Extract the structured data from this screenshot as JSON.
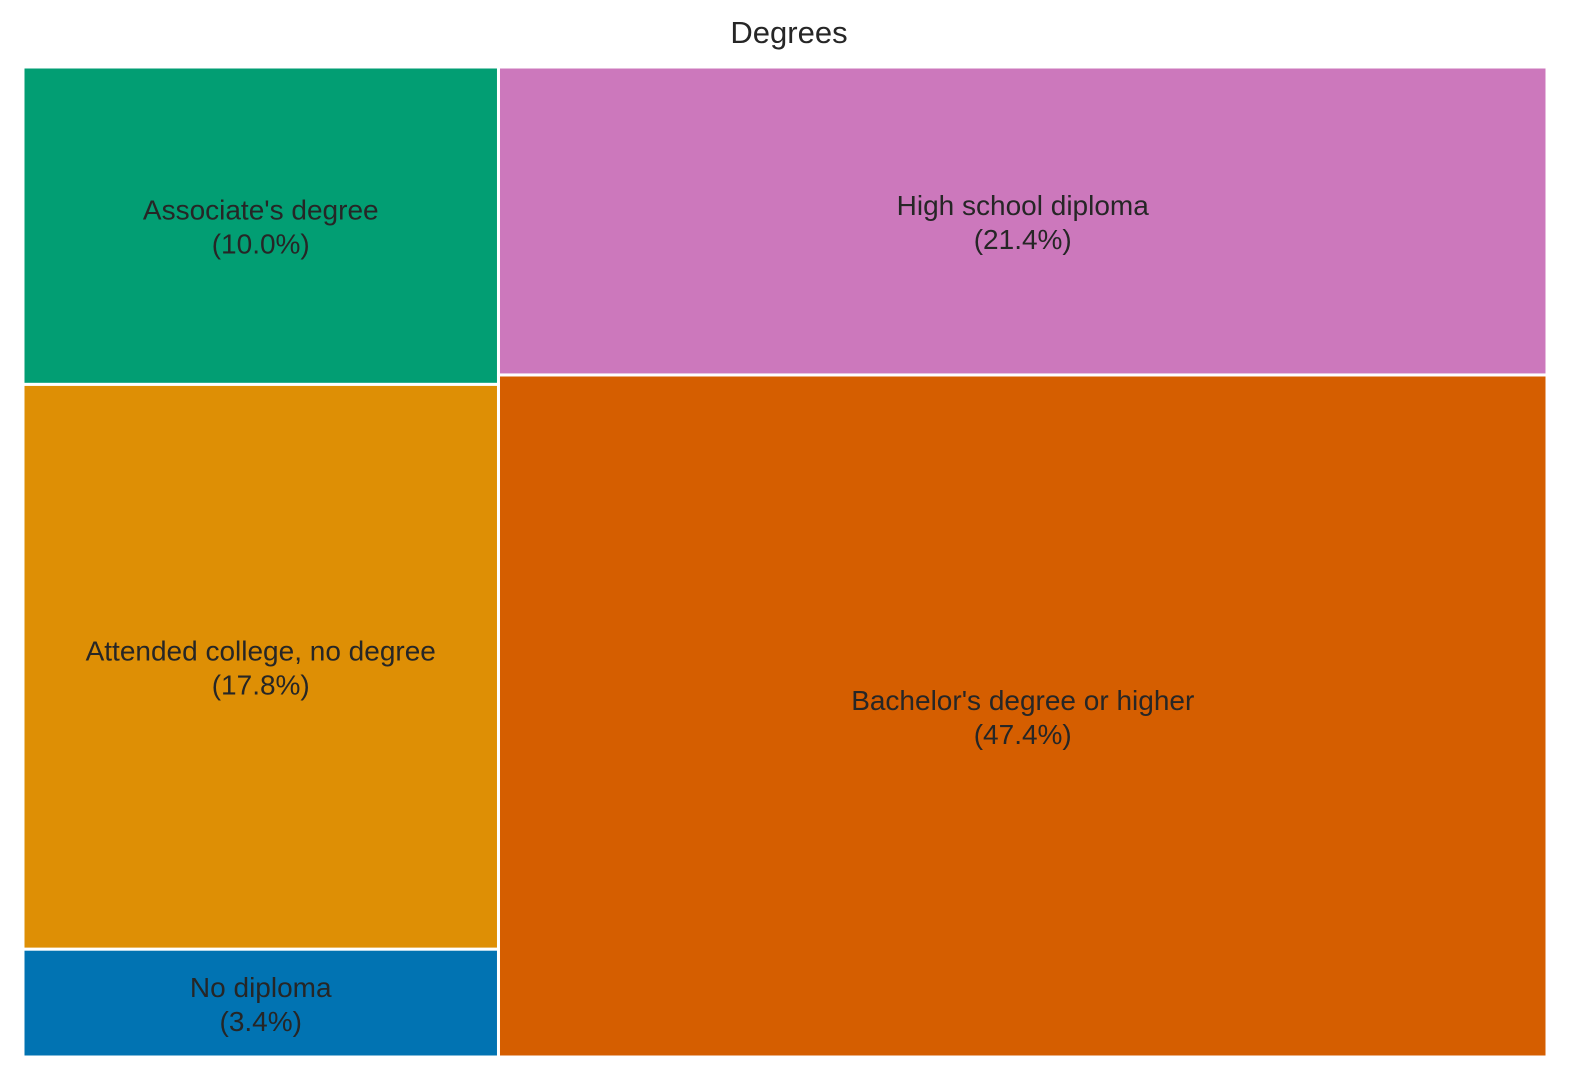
{
  "chart_data": {
    "type": "treemap",
    "title": "Degrees",
    "items": [
      {
        "label": "No diploma",
        "percent_label": "(3.4%)",
        "value": 3.4,
        "color": "#0173b2"
      },
      {
        "label": "Attended college, no degree",
        "percent_label": "(17.8%)",
        "value": 17.8,
        "color": "#de8f05"
      },
      {
        "label": "Associate's degree",
        "percent_label": "(10.0%)",
        "value": 10.0,
        "color": "#029e73"
      },
      {
        "label": "Bachelor's degree or higher",
        "percent_label": "(47.4%)",
        "value": 47.4,
        "color": "#d55e00"
      },
      {
        "label": "High school diploma",
        "percent_label": "(21.4%)",
        "value": 21.4,
        "color": "#cc78bc"
      }
    ],
    "tile_border_color": "#ffffff"
  }
}
